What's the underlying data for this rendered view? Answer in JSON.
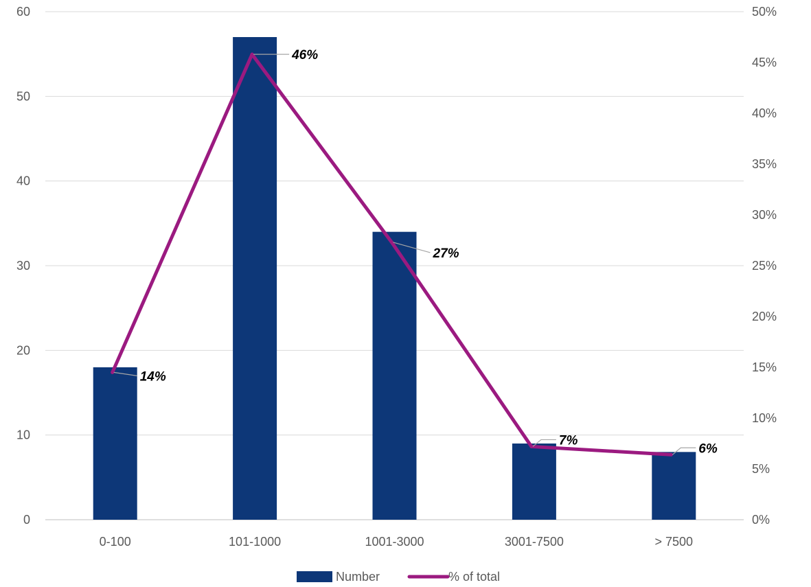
{
  "chart_data": {
    "type": "bar",
    "categories": [
      "0-100",
      "101-1000",
      "1001-3000",
      "3001-7500",
      "> 7500"
    ],
    "series": [
      {
        "name": "Number",
        "type": "bar",
        "axis": "left",
        "values": [
          18,
          57,
          34,
          9,
          8
        ],
        "color": "#0d3778"
      },
      {
        "name": "% of total",
        "type": "line",
        "axis": "right",
        "values": [
          14.5,
          45.8,
          27.3,
          7.2,
          6.4
        ],
        "color": "#9b1a80",
        "labels": [
          "14%",
          "46%",
          "27%",
          "7%",
          "6%"
        ]
      }
    ],
    "y_left": {
      "min": 0,
      "max": 60,
      "ticks": [
        "0",
        "10",
        "20",
        "30",
        "40",
        "50",
        "60"
      ]
    },
    "y_right": {
      "min": 0,
      "max": 50,
      "ticks": [
        "0%",
        "5%",
        "10%",
        "15%",
        "20%",
        "25%",
        "30%",
        "35%",
        "40%",
        "45%",
        "50%"
      ]
    },
    "grid": true,
    "legend": "bottom",
    "title": "",
    "xlabel": "",
    "ylabel": ""
  }
}
